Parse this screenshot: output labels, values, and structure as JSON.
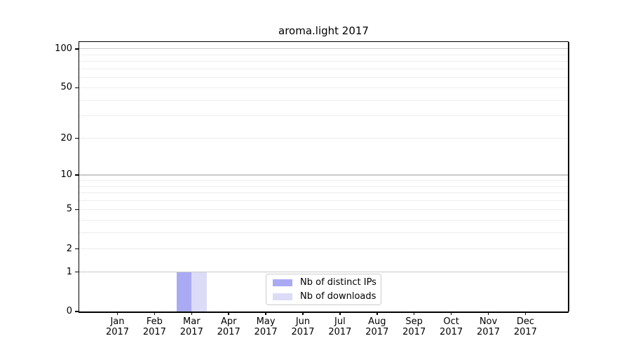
{
  "chart_data": {
    "type": "bar",
    "title": "aroma.light 2017",
    "categories": [
      "Jan 2017",
      "Feb 2017",
      "Mar 2017",
      "Apr 2017",
      "May 2017",
      "Jun 2017",
      "Jul 2017",
      "Aug 2017",
      "Sep 2017",
      "Oct 2017",
      "Nov 2017",
      "Dec 2017"
    ],
    "series": [
      {
        "name": "Nb of distinct IPs",
        "color": "#aaaaf4",
        "values": [
          0,
          0,
          1,
          0,
          0,
          0,
          0,
          0,
          0,
          0,
          0,
          0
        ]
      },
      {
        "name": "Nb of downloads",
        "color": "#dcdcf8",
        "values": [
          0,
          0,
          1,
          0,
          0,
          0,
          0,
          0,
          0,
          0,
          0,
          0
        ]
      }
    ],
    "xlabel": "",
    "ylabel": "",
    "yscale": "log1p",
    "ylim": [
      0,
      113
    ],
    "y_tick_values": [
      0,
      1,
      2,
      5,
      10,
      20,
      50,
      100
    ],
    "y_tick_labels": [
      "0",
      "1",
      "2",
      "5",
      "10",
      "20",
      "50",
      "100"
    ],
    "y_grid_major": [
      1,
      10,
      100
    ],
    "y_grid_minor": [
      2,
      3,
      4,
      5,
      6,
      7,
      8,
      9,
      20,
      30,
      40,
      50,
      60,
      70,
      80,
      90
    ],
    "grid": true,
    "legend_position": "lower center"
  },
  "colors": {
    "bar_distinct_ips": "#aaaaf4",
    "bar_downloads": "#dcdcf8",
    "grid_major": "#c9c9c9",
    "grid_minor": "#ededed",
    "spine": "#000000",
    "text": "#000000",
    "legend_border": "#cccccc"
  }
}
